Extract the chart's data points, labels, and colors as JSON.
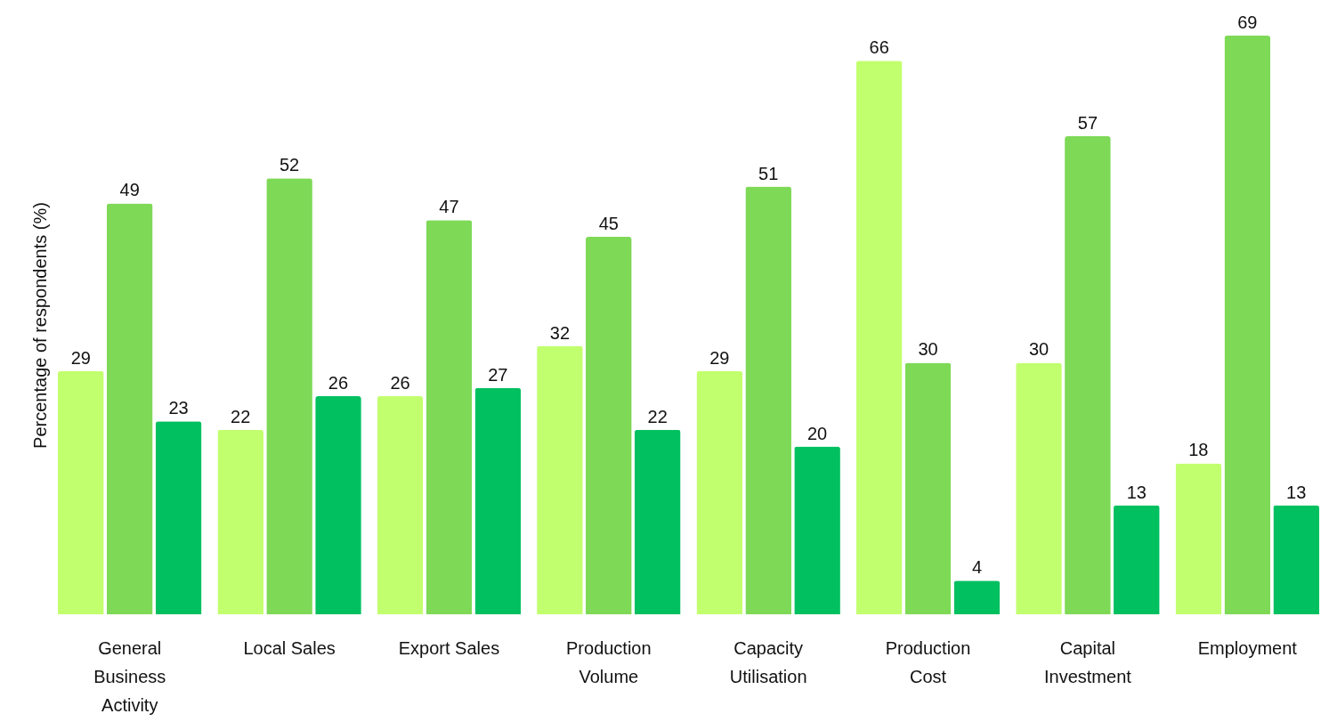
{
  "chart_data": {
    "type": "bar",
    "ylabel": "Percentage of respondents (%)",
    "categories": [
      "General Business Activity",
      "Local Sales",
      "Export Sales",
      "Production Volume",
      "Capacity Utilisation",
      "Production Cost",
      "Capital Investment",
      "Employment"
    ],
    "series": [
      {
        "color": "#c1ff6e",
        "values": [
          29,
          22,
          26,
          32,
          29,
          66,
          30,
          18
        ]
      },
      {
        "color": "#7ed957",
        "values": [
          49,
          52,
          47,
          45,
          51,
          30,
          57,
          69
        ]
      },
      {
        "color": "#00c060",
        "values": [
          23,
          26,
          27,
          22,
          20,
          4,
          13,
          13
        ]
      }
    ],
    "data_labels": true,
    "grid": false,
    "legend": false,
    "tick_labels": "x"
  }
}
